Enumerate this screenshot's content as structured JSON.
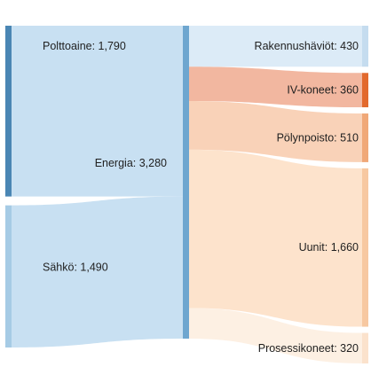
{
  "chart_data": {
    "type": "sankey",
    "title": "",
    "nodes": [
      {
        "id": "polttoaine",
        "label": "Polttoaine: 1,790",
        "value": 1790,
        "column": 0,
        "color": "#4a86b4"
      },
      {
        "id": "sahko",
        "label": "Sähkö: 1,490",
        "value": 1490,
        "column": 0,
        "color": "#a6cbe5"
      },
      {
        "id": "energia",
        "label": "Energia: 3,280",
        "value": 3280,
        "column": 1,
        "color": "#6ea6cf"
      },
      {
        "id": "rakennushaviot",
        "label": "Rakennushäviöt: 430",
        "value": 430,
        "column": 2,
        "color": "#c5dcef"
      },
      {
        "id": "ivkoneet",
        "label": "IV-koneet: 360",
        "value": 360,
        "column": 2,
        "color": "#e2692d"
      },
      {
        "id": "polynpoisto",
        "label": "Pölynpoisto: 510",
        "value": 510,
        "column": 2,
        "color": "#f0a878"
      },
      {
        "id": "uunit",
        "label": "Uunit: 1,660",
        "value": 1660,
        "column": 2,
        "color": "#f7c8a1"
      },
      {
        "id": "prosessikoneet",
        "label": "Prosessikoneet: 320",
        "value": 320,
        "column": 2,
        "color": "#fbe2cc"
      }
    ],
    "links": [
      {
        "source": "polttoaine",
        "target": "energia",
        "value": 1790,
        "color": "#c8e0f2"
      },
      {
        "source": "sahko",
        "target": "energia",
        "value": 1490,
        "color": "#c8e0f2"
      },
      {
        "source": "energia",
        "target": "rakennushaviot",
        "value": 430,
        "color": "#dcebf7"
      },
      {
        "source": "energia",
        "target": "ivkoneet",
        "value": 360,
        "color": "#f2b7a0"
      },
      {
        "source": "energia",
        "target": "polynpoisto",
        "value": 510,
        "color": "#f9d2b8"
      },
      {
        "source": "energia",
        "target": "uunit",
        "value": 1660,
        "color": "#fde3cc"
      },
      {
        "source": "energia",
        "target": "prosessikoneet",
        "value": 320,
        "color": "#fdf0e3"
      }
    ]
  }
}
